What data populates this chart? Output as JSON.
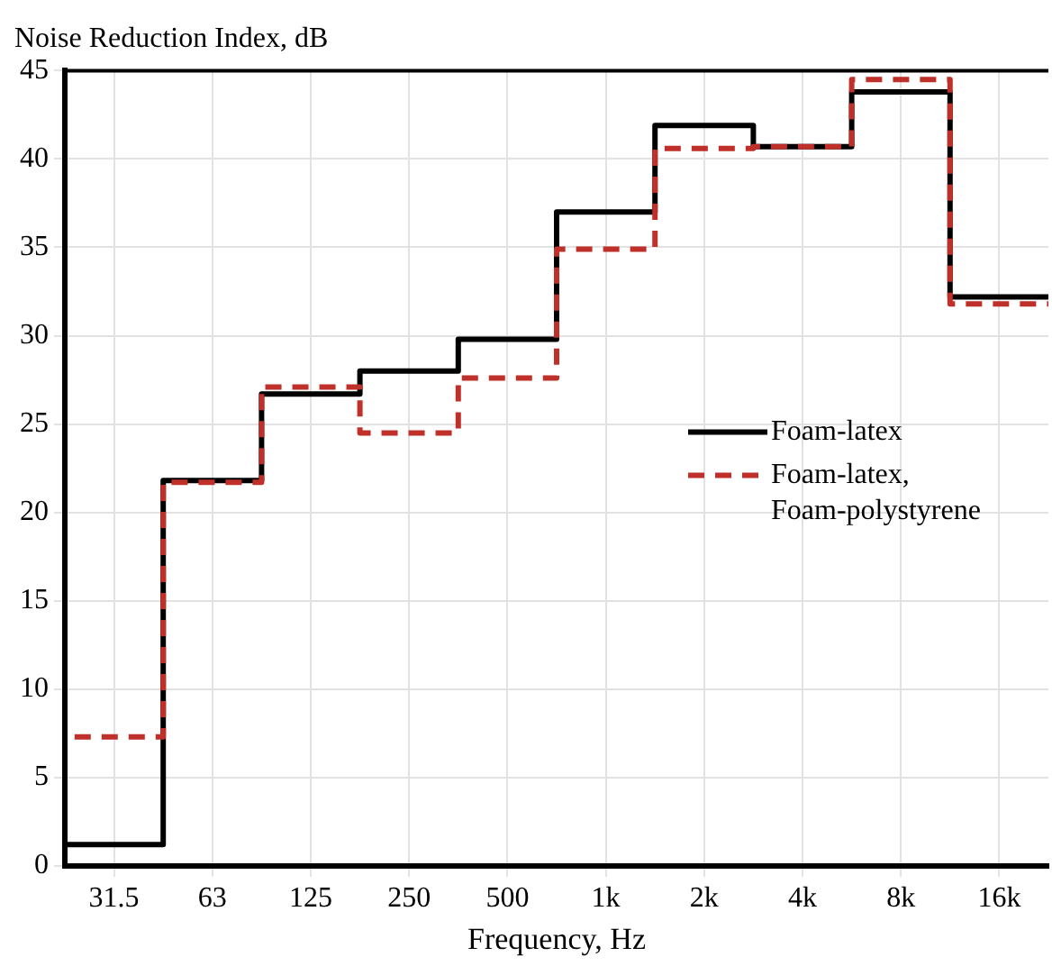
{
  "chart_data": {
    "type": "step",
    "ylabel": "Noise Reduction Index, dB",
    "xlabel": "Frequency, Hz",
    "categories": [
      "31.5",
      "63",
      "125",
      "250",
      "500",
      "1k",
      "2k",
      "4k",
      "8k",
      "16k"
    ],
    "series": [
      {
        "name": "Foam-latex",
        "color": "#000000",
        "line_style": "solid",
        "values": [
          1.2,
          21.8,
          26.7,
          28.0,
          29.8,
          37.0,
          41.9,
          40.7,
          43.8,
          32.2
        ]
      },
      {
        "name": "Foam-latex, Foam-polystyrene",
        "color": "#c0302a",
        "line_style": "dashed",
        "values": [
          7.3,
          21.7,
          27.1,
          24.5,
          27.6,
          34.9,
          40.6,
          40.7,
          44.5,
          31.8
        ]
      }
    ],
    "ylim": [
      0,
      45
    ],
    "yticks": [
      0,
      5,
      10,
      15,
      20,
      25,
      30,
      35,
      40,
      45
    ],
    "grid": true,
    "legend": "right",
    "marker": "none"
  }
}
